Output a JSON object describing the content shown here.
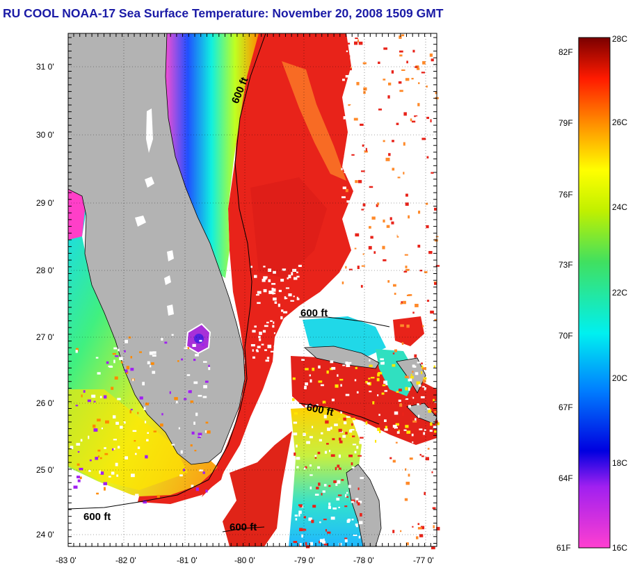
{
  "title": "RU COOL  NOAA-17  Sea Surface Temperature:  November 20, 2008 1509 GMT",
  "map": {
    "lat_ticks": [
      "31 0'",
      "30 0'",
      "29 0'",
      "28 0'",
      "27 0'",
      "26 0'",
      "25 0'",
      "24 0'"
    ],
    "lon_ticks": [
      "-83 0'",
      "-82 0'",
      "-81 0'",
      "-80 0'",
      "-79 0'",
      "-78 0'",
      "-77 0'"
    ],
    "contour_label": "600 ft",
    "colors": {
      "land": "#b3b3b3",
      "no_data": "#ffffff",
      "gulf_stream": "#e8231a"
    }
  },
  "colorbar": {
    "fahrenheit_labels": [
      "82F",
      "79F",
      "76F",
      "73F",
      "70F",
      "67F",
      "64F",
      "61F"
    ],
    "celsius_labels": [
      "28C",
      "26C",
      "24C",
      "22C",
      "20C",
      "18C",
      "16C"
    ],
    "range_c": [
      16,
      28
    ]
  }
}
